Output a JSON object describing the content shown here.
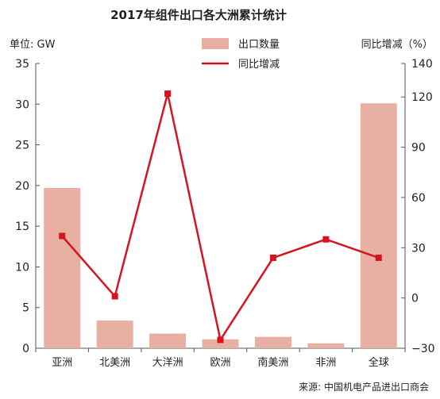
{
  "chart_data": {
    "type": "bar",
    "title": "2017年组件出口各大洲累计统计",
    "left_axis_label": "单位: GW",
    "right_axis_label": "同比增减（%）",
    "categories": [
      "亚洲",
      "北美洲",
      "大洋洲",
      "欧洲",
      "南美洲",
      "非洲",
      "全球"
    ],
    "series": [
      {
        "name": "出口数量",
        "type": "bar",
        "axis": "left",
        "color": "#e8b0a2",
        "values": [
          19.7,
          3.4,
          1.8,
          1.1,
          1.4,
          0.6,
          30.1
        ]
      },
      {
        "name": "同比增减",
        "type": "line",
        "axis": "right",
        "color": "#d6141f",
        "values": [
          37,
          1,
          122,
          -25,
          24,
          35,
          24
        ]
      }
    ],
    "left_ylim": [
      0,
      35
    ],
    "left_ticks": [
      "0",
      "5",
      "10",
      "15",
      "20",
      "25",
      "30",
      "35"
    ],
    "right_ylim": [
      -30,
      140
    ],
    "right_ticks": [
      "−30",
      "0",
      "30",
      "60",
      "90",
      "120",
      "140"
    ],
    "right_tick_values": [
      -30,
      0,
      30,
      60,
      90,
      120,
      140
    ],
    "legend_position": "top-center",
    "grid": false,
    "source": "来源: 中国机电产品进出口商会"
  }
}
